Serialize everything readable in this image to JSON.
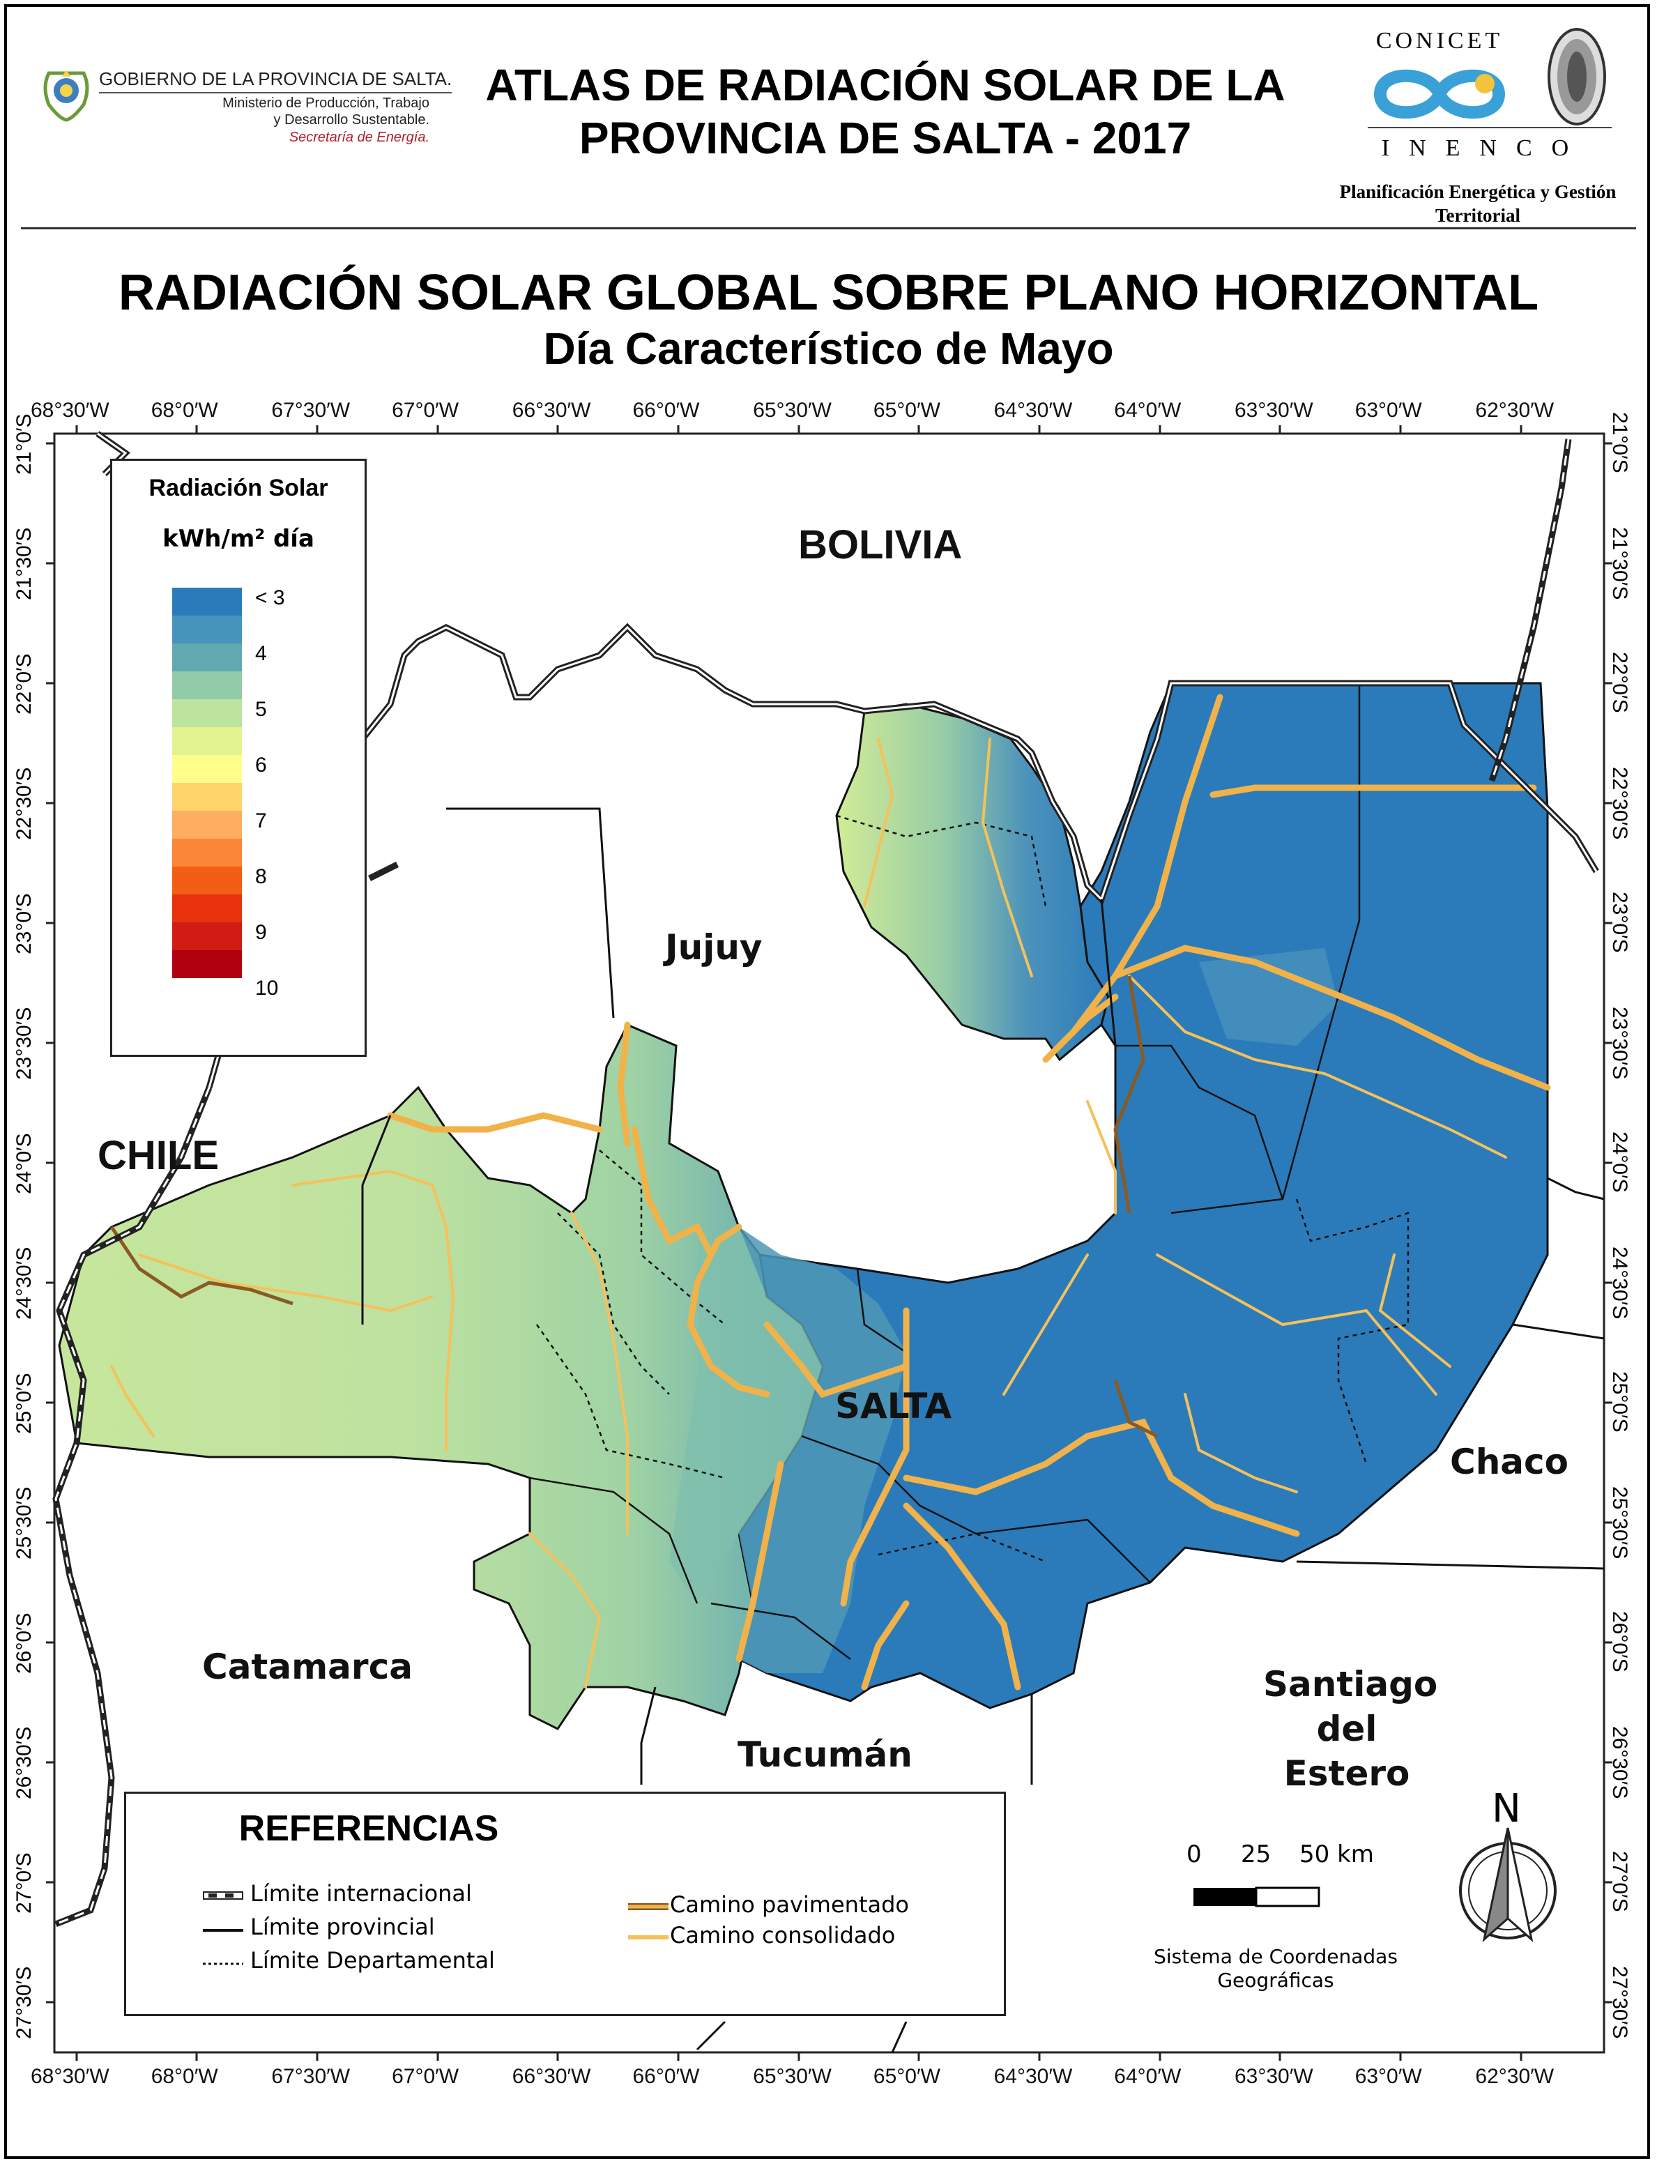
{
  "header": {
    "gov_line1": "GOBIERNO DE LA PROVINCIA DE SALTA.",
    "gov_line2": "Ministerio de Producción, Trabajo",
    "gov_line3": "y Desarrollo Sustentable.",
    "gov_line4": "Secretaría de Energía.",
    "title_line1": "ATLAS DE RADIACIÓN SOLAR DE LA",
    "title_line2": "PROVINCIA DE SALTA - 2017",
    "conicet": "CONICET",
    "inenco": "INENCO",
    "plan_line1": "Planificación Energética y Gestión",
    "plan_line2": "Territorial"
  },
  "map": {
    "title": "RADIACIÓN SOLAR GLOBAL SOBRE PLANO HORIZONTAL",
    "subtitle": "Día Característico de Mayo",
    "lon_ticks": [
      "68°30′W",
      "68°0′W",
      "67°30′W",
      "67°0′W",
      "66°30′W",
      "66°0′W",
      "65°30′W",
      "65°0′W",
      "64°30′W",
      "64°0′W",
      "63°30′W",
      "63°0′W",
      "62°30′W"
    ],
    "lat_ticks": [
      "21°0′S",
      "21°30′S",
      "22°0′S",
      "22°30′S",
      "23°0′S",
      "23°30′S",
      "24°0′S",
      "24°30′S",
      "25°0′S",
      "25°30′S",
      "26°0′S",
      "26°30′S",
      "27°0′S",
      "27°30′S"
    ],
    "places": {
      "bolivia": "BOLIVIA",
      "chile": "CHILE",
      "jujuy": "Jujuy",
      "salta": "SALTA",
      "chaco": "Chaco",
      "catamarca": "Catamarca",
      "tucuman": "Tucumán",
      "santiago1": "Santiago",
      "santiago2": "del",
      "santiago3": "Estero"
    }
  },
  "legend": {
    "title": "Radiación Solar",
    "unit": "kWh/m² día",
    "colors": [
      "#2b7bba",
      "#4794bd",
      "#61a9b0",
      "#92cba8",
      "#bde49e",
      "#e2f38f",
      "#fffe8c",
      "#fed46b",
      "#fdae61",
      "#fb8638",
      "#f35e15",
      "#e8320d",
      "#d01c15",
      "#b10010"
    ],
    "labels": [
      {
        "text": "< 3",
        "index": 0
      },
      {
        "text": "4",
        "index": 2
      },
      {
        "text": "5",
        "index": 4
      },
      {
        "text": "6",
        "index": 6
      },
      {
        "text": "7",
        "index": 8
      },
      {
        "text": "8",
        "index": 10
      },
      {
        "text": "9",
        "index": 12
      },
      {
        "text": "10",
        "index": 14
      }
    ]
  },
  "references": {
    "title": "REFERENCIAS",
    "intl": "Límite internacional",
    "prov": "Límite provincial",
    "dept": "Límite Departamental",
    "paved": "Camino pavimentado",
    "gravel": "Camino consolidado"
  },
  "scale": {
    "n0": "0",
    "n1": "25",
    "n2": "50 km"
  },
  "crs": {
    "line1": "Sistema de Coordenadas",
    "line2": "Geográficas"
  },
  "north": "N"
}
